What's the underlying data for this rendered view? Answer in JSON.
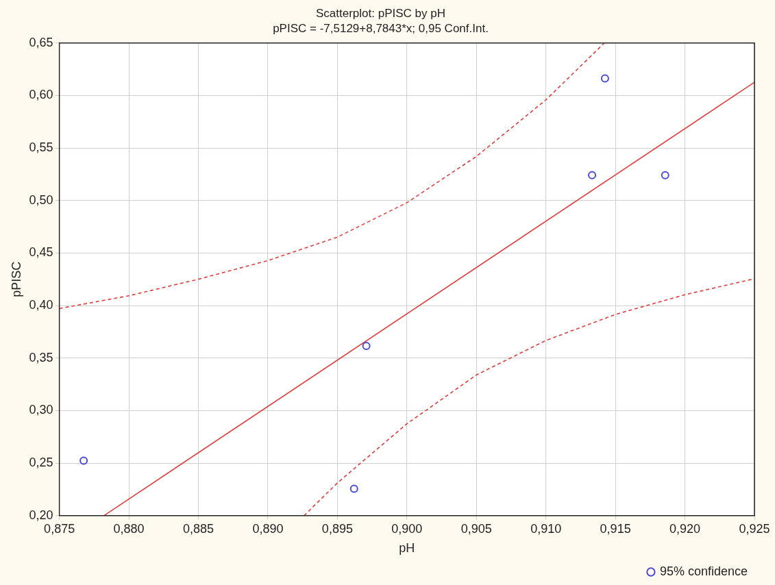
{
  "chart_data": {
    "type": "scatter",
    "title": "Scatterplot: pPISC by pH",
    "subtitle": "pPISC = -7,5129+8,7843*x; 0,95 Conf.Int.",
    "xlabel": "pH",
    "ylabel": "pPISC",
    "xlim": [
      0.875,
      0.925
    ],
    "ylim": [
      0.2,
      0.65
    ],
    "xticks": [
      {
        "value": 0.875,
        "label": "0,875"
      },
      {
        "value": 0.88,
        "label": "0,880"
      },
      {
        "value": 0.885,
        "label": "0,885"
      },
      {
        "value": 0.89,
        "label": "0,890"
      },
      {
        "value": 0.895,
        "label": "0,895"
      },
      {
        "value": 0.9,
        "label": "0,900"
      },
      {
        "value": 0.905,
        "label": "0,905"
      },
      {
        "value": 0.91,
        "label": "0,910"
      },
      {
        "value": 0.915,
        "label": "0,915"
      },
      {
        "value": 0.92,
        "label": "0,920"
      },
      {
        "value": 0.925,
        "label": "0,925"
      }
    ],
    "yticks": [
      {
        "value": 0.2,
        "label": "0,20"
      },
      {
        "value": 0.25,
        "label": "0,25"
      },
      {
        "value": 0.3,
        "label": "0,30"
      },
      {
        "value": 0.35,
        "label": "0,35"
      },
      {
        "value": 0.4,
        "label": "0,40"
      },
      {
        "value": 0.45,
        "label": "0,45"
      },
      {
        "value": 0.5,
        "label": "0,50"
      },
      {
        "value": 0.55,
        "label": "0,55"
      },
      {
        "value": 0.6,
        "label": "0,60"
      },
      {
        "value": 0.65,
        "label": "0,65"
      }
    ],
    "grid": true,
    "legend": "bottom right",
    "series": [
      {
        "marker": "circle",
        "name": "95% confidence",
        "color": "#4b4bd8",
        "x": [
          0.87675,
          0.8962,
          0.89708,
          0.91332,
          0.91425,
          0.91858
        ],
        "values": [
          0.2523,
          0.2256,
          0.3616,
          0.5241,
          0.6163,
          0.5241
        ]
      },
      {
        "type": "line",
        "marker": "none",
        "color": "#e03c3c",
        "line_style": "solid",
        "x": [
          0.8782,
          0.925
        ],
        "values": [
          0.2,
          0.6126
        ]
      },
      {
        "type": "line",
        "marker": "none",
        "color": "#e03c3c",
        "line_style": "dashed",
        "x": [
          0.875,
          0.88,
          0.885,
          0.89,
          0.895,
          0.9,
          0.905,
          0.91,
          0.9142
        ],
        "values": [
          0.3972,
          0.4094,
          0.4251,
          0.4429,
          0.4652,
          0.498,
          0.542,
          0.5959,
          0.65
        ]
      },
      {
        "type": "line",
        "marker": "none",
        "color": "#e03c3c",
        "line_style": "dashed",
        "x": [
          0.8926,
          0.895,
          0.9,
          0.905,
          0.91,
          0.915,
          0.92,
          0.925
        ],
        "values": [
          0.2,
          0.2312,
          0.2875,
          0.334,
          0.3668,
          0.3916,
          0.4104,
          0.4256
        ]
      }
    ]
  }
}
